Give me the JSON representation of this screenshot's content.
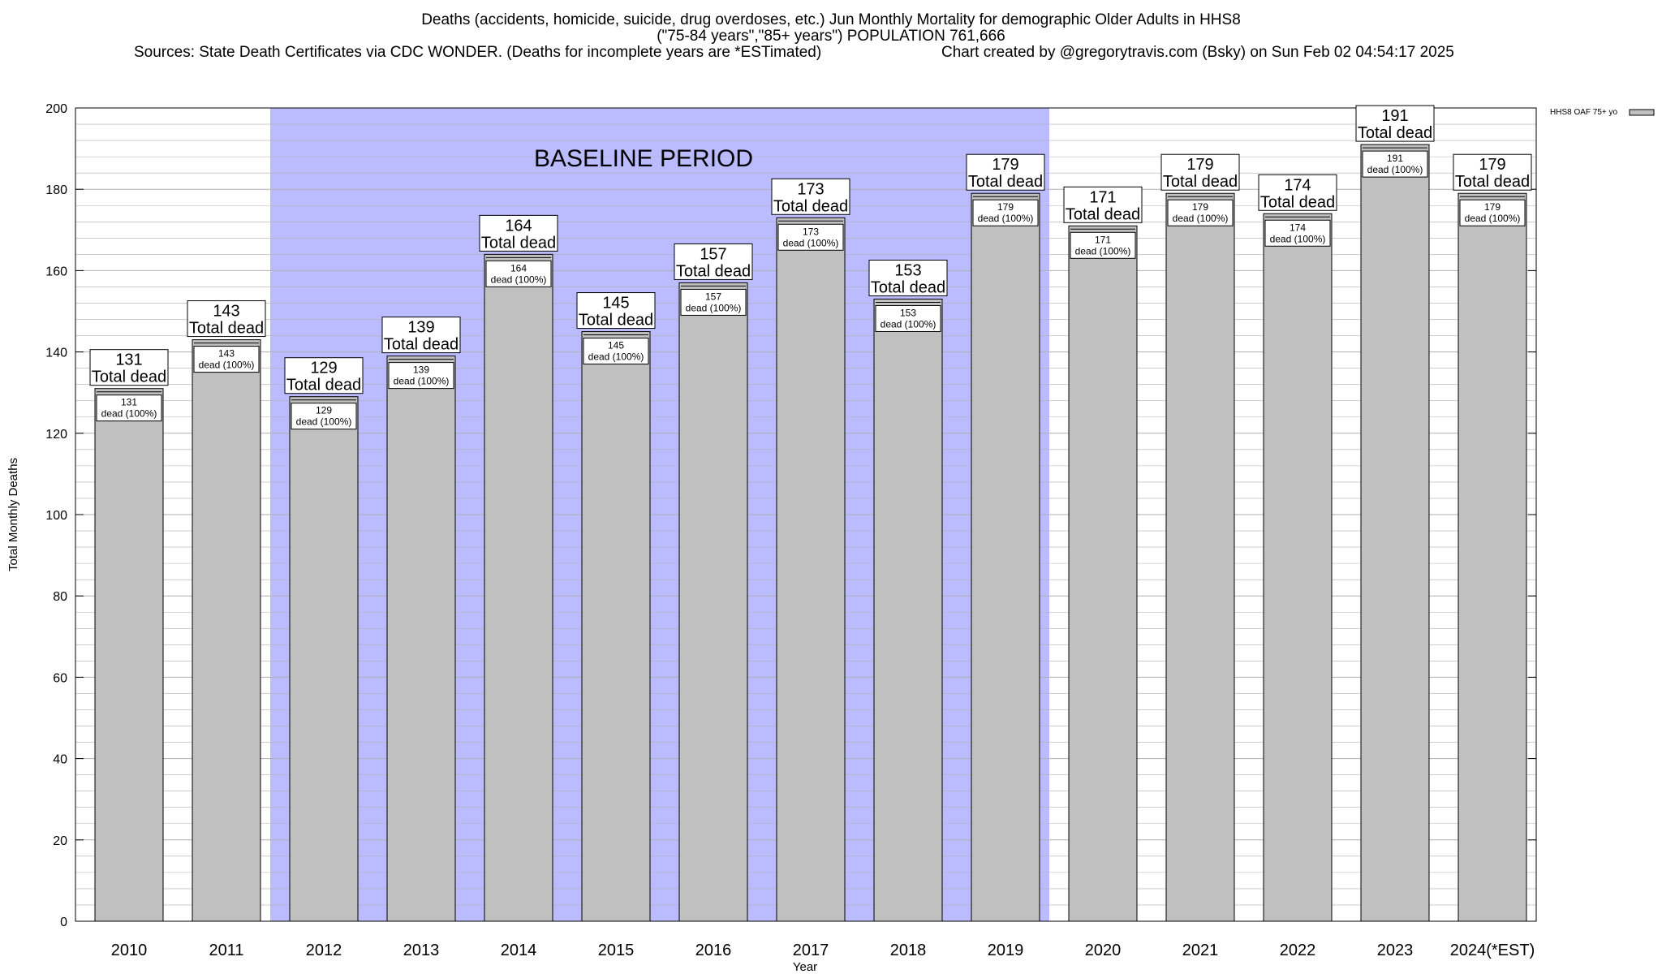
{
  "header": {
    "title": "Deaths (accidents, homicide, suicide, drug overdoses, etc.) Jun Monthly Mortality for demographic Older Adults in HHS8",
    "subtitle": "(\"75-84 years\",\"85+ years\") POPULATION 761,666",
    "sources": "Sources: State Death Certificates via CDC WONDER. (Deaths for incomplete years are *ESTimated)",
    "credit": "Chart created by @gregorytravis.com (Bsky) on Sun Feb 02 04:54:17 2025"
  },
  "colors": {
    "bar_fill": "#c0c0c0",
    "baseline_fill": "#bbbbff",
    "grid": "#b0b0b0"
  },
  "chart_data": {
    "type": "bar",
    "xlabel": "Year",
    "ylabel": "Total Monthly Deaths",
    "ylim": [
      0,
      200
    ],
    "yticks": [
      0,
      20,
      40,
      60,
      80,
      100,
      120,
      140,
      160,
      180,
      200
    ],
    "categories": [
      "2010",
      "2011",
      "2012",
      "2013",
      "2014",
      "2015",
      "2016",
      "2017",
      "2018",
      "2019",
      "2020",
      "2021",
      "2022",
      "2023",
      "2024(*EST)"
    ],
    "series": [
      {
        "name": "HHS8 OAF 75+ yo",
        "values": [
          131,
          143,
          129,
          139,
          164,
          145,
          157,
          173,
          153,
          179,
          171,
          179,
          174,
          191,
          179
        ]
      }
    ],
    "total_label": "Total dead",
    "inner_label": "dead (100%)",
    "baseline_annotation": {
      "label": "BASELINE PERIOD",
      "from": "2012",
      "to": "2019"
    },
    "legend_position": "top-right",
    "grid": true
  }
}
